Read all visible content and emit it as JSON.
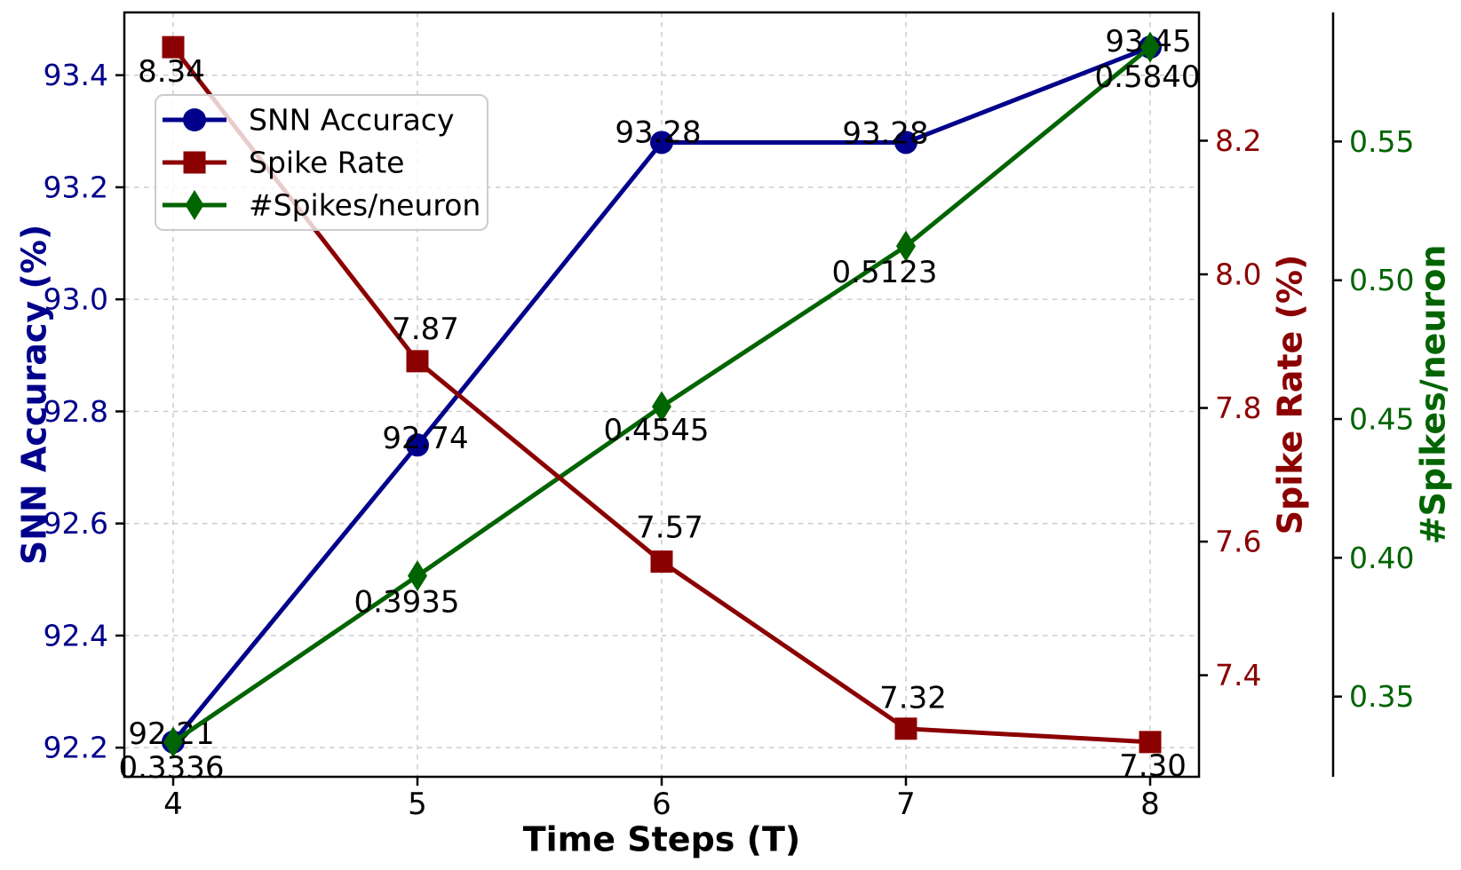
{
  "background": "#ffffff",
  "chart_data": {
    "type": "line",
    "x": [
      4,
      5,
      6,
      7,
      8
    ],
    "x_tick_labels": [
      "4",
      "5",
      "6",
      "7",
      "8"
    ],
    "xlabel": "Time Steps (T)",
    "xlim": [
      3.8,
      8.2
    ],
    "grid": true,
    "grid_style": "dashed",
    "legend_position": "upper left",
    "legend": [
      {
        "label": "SNN Accuracy",
        "marker": "circle",
        "color": "#00008B"
      },
      {
        "label": "Spike Rate",
        "marker": "square",
        "color": "#8B0000"
      },
      {
        "label": "#Spikes/neuron",
        "marker": "diamond",
        "color": "#006400"
      }
    ],
    "axes": {
      "left": {
        "label": "SNN Accuracy (%)",
        "color": "#00008B",
        "lim": [
          92.148,
          93.512
        ],
        "ticks": [
          {
            "v": 92.2,
            "t": "92.2"
          },
          {
            "v": 92.4,
            "t": "92.4"
          },
          {
            "v": 92.6,
            "t": "92.6"
          },
          {
            "v": 92.8,
            "t": "92.8"
          },
          {
            "v": 93.0,
            "t": "93.0"
          },
          {
            "v": 93.2,
            "t": "93.2"
          },
          {
            "v": 93.4,
            "t": "93.4"
          }
        ]
      },
      "right1": {
        "label": "Spike Rate (%)",
        "color": "#8B0000",
        "lim": [
          7.248,
          8.392
        ],
        "ticks": [
          {
            "v": 7.4,
            "t": "7.4"
          },
          {
            "v": 7.6,
            "t": "7.6"
          },
          {
            "v": 7.8,
            "t": "7.8"
          },
          {
            "v": 8.0,
            "t": "8.0"
          },
          {
            "v": 8.2,
            "t": "8.2"
          }
        ]
      },
      "right2": {
        "label": "#Spikes/neuron",
        "color": "#006400",
        "lim": [
          0.3211,
          0.5965
        ],
        "ticks": [
          {
            "v": 0.35,
            "t": "0.35"
          },
          {
            "v": 0.4,
            "t": "0.40"
          },
          {
            "v": 0.45,
            "t": "0.45"
          },
          {
            "v": 0.5,
            "t": "0.50"
          },
          {
            "v": 0.55,
            "t": "0.55"
          }
        ]
      }
    },
    "series": [
      {
        "name": "SNN Accuracy",
        "axis": "left",
        "color": "#00008B",
        "marker": "circle",
        "values": [
          92.21,
          92.74,
          93.28,
          93.28,
          93.45
        ],
        "point_labels": [
          "92.21",
          "92.74",
          "93.28",
          "93.28",
          "93.45"
        ]
      },
      {
        "name": "Spike Rate",
        "axis": "right1",
        "color": "#8B0000",
        "marker": "square",
        "values": [
          8.34,
          7.87,
          7.57,
          7.32,
          7.3
        ],
        "point_labels": [
          "8.34",
          "7.87",
          "7.57",
          "7.32",
          "7.30"
        ]
      },
      {
        "name": "#Spikes/neuron",
        "axis": "right2",
        "color": "#006400",
        "marker": "diamond",
        "values": [
          0.3336,
          0.3935,
          0.4545,
          0.5123,
          0.584
        ],
        "point_labels": [
          "0.3336",
          "0.3935",
          "0.4545",
          "0.5123",
          "0.5840"
        ]
      }
    ]
  }
}
